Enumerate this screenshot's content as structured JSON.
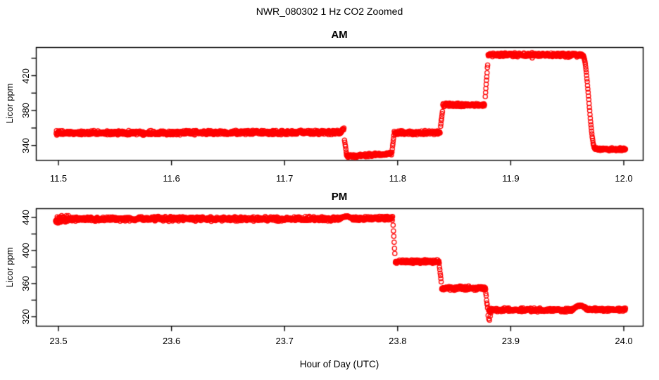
{
  "title": "NWR_080302  1 Hz CO2 Zoomed",
  "xlabel": "Hour of Day (UTC)",
  "marker_color": "#ff0000",
  "axis_color": "#000000",
  "chart_data": [
    {
      "type": "scatter",
      "title": "AM",
      "ylabel": "Licor ppm",
      "marker": "open-circle",
      "grid": false,
      "legend": null,
      "xlim": [
        11.48,
        12.017
      ],
      "ylim": [
        323,
        452
      ],
      "xticks": [
        {
          "value": 11.5,
          "label": "11.5"
        },
        {
          "value": 11.6,
          "label": "11.6"
        },
        {
          "value": 11.7,
          "label": "11.7"
        },
        {
          "value": 11.8,
          "label": "11.8"
        },
        {
          "value": 11.9,
          "label": "11.9"
        },
        {
          "value": 12.0,
          "label": "12.0"
        }
      ],
      "yticks": [
        {
          "value": 340,
          "label": "340"
        },
        {
          "value": 360,
          "label": ""
        },
        {
          "value": 380,
          "label": "380"
        },
        {
          "value": 400,
          "label": ""
        },
        {
          "value": 420,
          "label": "420"
        },
        {
          "value": 440,
          "label": ""
        }
      ],
      "sample_interval_hr": 0.000277778,
      "segments": [
        {
          "shape": "flat",
          "t0": 11.498,
          "t1": 11.7505,
          "v0": 354.3,
          "v1": 355.0,
          "noise": 1.6
        },
        {
          "shape": "flat",
          "t0": 11.7505,
          "t1": 11.7525,
          "v0": 357.8,
          "v1": 358.8,
          "noise": 0.9
        },
        {
          "shape": "ramp",
          "t0": 11.753,
          "t1": 11.7548,
          "v0": 346,
          "v1": 330,
          "noise": 0.5
        },
        {
          "shape": "flat",
          "t0": 11.7548,
          "t1": 11.7945,
          "v0": 327.6,
          "v1": 330.3,
          "noise": 1.3
        },
        {
          "shape": "ramp",
          "t0": 11.795,
          "t1": 11.7966,
          "v0": 333,
          "v1": 351,
          "noise": 0.5
        },
        {
          "shape": "flat",
          "t0": 11.797,
          "t1": 11.8375,
          "v0": 354.6,
          "v1": 354.6,
          "noise": 1.5
        },
        {
          "shape": "ramp",
          "t0": 11.838,
          "t1": 11.8396,
          "v0": 362,
          "v1": 379,
          "noise": 0.5
        },
        {
          "shape": "flat",
          "t0": 11.84,
          "t1": 11.8768,
          "v0": 386.4,
          "v1": 386.6,
          "noise": 1.4
        },
        {
          "shape": "ramp",
          "t0": 11.8775,
          "t1": 11.8796,
          "v0": 396,
          "v1": 433,
          "noise": 0.8
        },
        {
          "shape": "flat",
          "t0": 11.88,
          "t1": 11.9638,
          "v0": 443.9,
          "v1": 443.6,
          "noise": 1.5
        },
        {
          "shape": "ease",
          "t0": 11.9638,
          "t1": 11.9745,
          "v0": 443.5,
          "v1": 336.8,
          "noise": 0.4
        },
        {
          "shape": "flat",
          "t0": 11.9745,
          "t1": 12.0015,
          "v0": 336.0,
          "v1": 335.6,
          "noise": 1.2
        }
      ],
      "extra_points": [
        [
          11.919,
          440.3
        ]
      ]
    },
    {
      "type": "scatter",
      "title": "PM",
      "ylabel": "Licor ppm",
      "marker": "open-circle",
      "grid": false,
      "legend": null,
      "xlim": [
        23.48,
        24.017
      ],
      "ylim": [
        309,
        451
      ],
      "xticks": [
        {
          "value": 23.5,
          "label": "23.5"
        },
        {
          "value": 23.6,
          "label": "23.6"
        },
        {
          "value": 23.7,
          "label": "23.7"
        },
        {
          "value": 23.8,
          "label": "23.8"
        },
        {
          "value": 23.9,
          "label": "23.9"
        },
        {
          "value": 24.0,
          "label": "24.0"
        }
      ],
      "yticks": [
        {
          "value": 320,
          "label": "320"
        },
        {
          "value": 340,
          "label": ""
        },
        {
          "value": 360,
          "label": "360"
        },
        {
          "value": 380,
          "label": ""
        },
        {
          "value": 400,
          "label": "400"
        },
        {
          "value": 420,
          "label": ""
        },
        {
          "value": 440,
          "label": "440"
        }
      ],
      "sample_interval_hr": 0.000277778,
      "segments": [
        {
          "shape": "flat",
          "t0": 23.4975,
          "t1": 23.509,
          "v0": 437.3,
          "v1": 437.8,
          "noise": 3.0
        },
        {
          "shape": "flat",
          "t0": 23.509,
          "t1": 23.7485,
          "v0": 438.1,
          "v1": 438.3,
          "noise": 1.7
        },
        {
          "shape": "bump",
          "t0": 23.7485,
          "t1": 23.7605,
          "v0": 438.3,
          "v1": 441.0,
          "noise": 0.8
        },
        {
          "shape": "flat",
          "t0": 23.7605,
          "t1": 23.7955,
          "v0": 438.6,
          "v1": 438.9,
          "noise": 1.6
        },
        {
          "shape": "ramp",
          "t0": 23.796,
          "t1": 23.7975,
          "v0": 430,
          "v1": 396,
          "noise": 0.5
        },
        {
          "shape": "flat",
          "t0": 23.798,
          "t1": 23.8368,
          "v0": 386.6,
          "v1": 386.3,
          "noise": 1.5
        },
        {
          "shape": "ramp",
          "t0": 23.837,
          "t1": 23.8385,
          "v0": 380,
          "v1": 362,
          "noise": 0.5
        },
        {
          "shape": "flat",
          "t0": 23.839,
          "t1": 23.8778,
          "v0": 354.6,
          "v1": 354.4,
          "noise": 1.5
        },
        {
          "shape": "ramp",
          "t0": 23.878,
          "t1": 23.8795,
          "v0": 348,
          "v1": 330,
          "noise": 0.6
        },
        {
          "shape": "flat",
          "t0": 23.8805,
          "t1": 23.954,
          "v0": 328.2,
          "v1": 328.0,
          "noise": 1.5
        },
        {
          "shape": "bump",
          "t0": 23.954,
          "t1": 23.9685,
          "v0": 328.0,
          "v1": 333.2,
          "noise": 0.9
        },
        {
          "shape": "flat",
          "t0": 23.9685,
          "t1": 24.0015,
          "v0": 328.6,
          "v1": 328.4,
          "noise": 1.4
        }
      ],
      "extra_points": [
        [
          23.88,
          321.5
        ],
        [
          23.8806,
          317.5
        ],
        [
          23.8812,
          315.8
        ],
        [
          23.8818,
          320.5
        ],
        [
          23.8824,
          324.5
        ]
      ]
    }
  ]
}
